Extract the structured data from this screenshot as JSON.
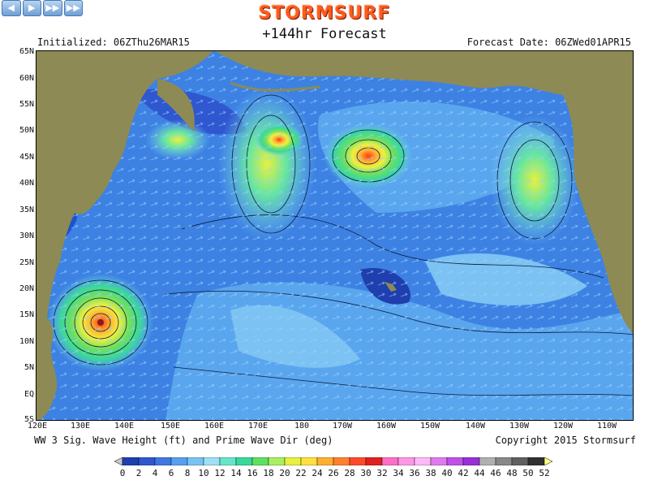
{
  "nav": {
    "buttons": [
      "◀",
      "▶",
      "▶▶",
      "▶▶"
    ]
  },
  "brand": "STORMSURF",
  "forecast": "+144hr Forecast",
  "initialized": "Initialized: 06ZThu26MAR15",
  "forecast_date": "Forecast Date: 06ZWed01APR15",
  "lat_labels": [
    "65N",
    "60N",
    "55N",
    "50N",
    "45N",
    "40N",
    "35N",
    "30N",
    "25N",
    "20N",
    "15N",
    "10N",
    "5N",
    "EQ",
    "5S"
  ],
  "lon_labels": [
    "120E",
    "130E",
    "140E",
    "150E",
    "160E",
    "170E",
    "180",
    "170W",
    "160W",
    "150W",
    "140W",
    "130W",
    "120W",
    "110W"
  ],
  "caption": "WW 3 Sig. Wave Height (ft) and Prime Wave Dir (deg)",
  "copyright": "Copyright 2015 Stormsurf",
  "scale": {
    "labels": [
      "0",
      "2",
      "4",
      "6",
      "8",
      "10",
      "12",
      "14",
      "16",
      "18",
      "20",
      "22",
      "24",
      "26",
      "28",
      "30",
      "32",
      "34",
      "36",
      "38",
      "40",
      "42",
      "44",
      "46",
      "48",
      "50",
      "52"
    ],
    "colors": [
      "#1f3fae",
      "#2f57d0",
      "#3f78e0",
      "#56a0ee",
      "#76c4f6",
      "#9ee0f6",
      "#66e6c8",
      "#3ad89a",
      "#60e060",
      "#a8f060",
      "#e8f040",
      "#ffe040",
      "#ffb030",
      "#ff8030",
      "#ff4a2a",
      "#e02020",
      "#ff6ec8",
      "#ff96e6",
      "#ffb8f6",
      "#e07af0",
      "#c050e8",
      "#9a30d8",
      "#b0b0b0",
      "#888888",
      "#606060",
      "#303030",
      "#ffffff",
      "#ffff80"
    ]
  },
  "colors": {
    "land": "#8d8a55",
    "deep_water": "#1f52c9",
    "mid_water": "#3d82e3",
    "calm_water": "#7cc2f3"
  }
}
